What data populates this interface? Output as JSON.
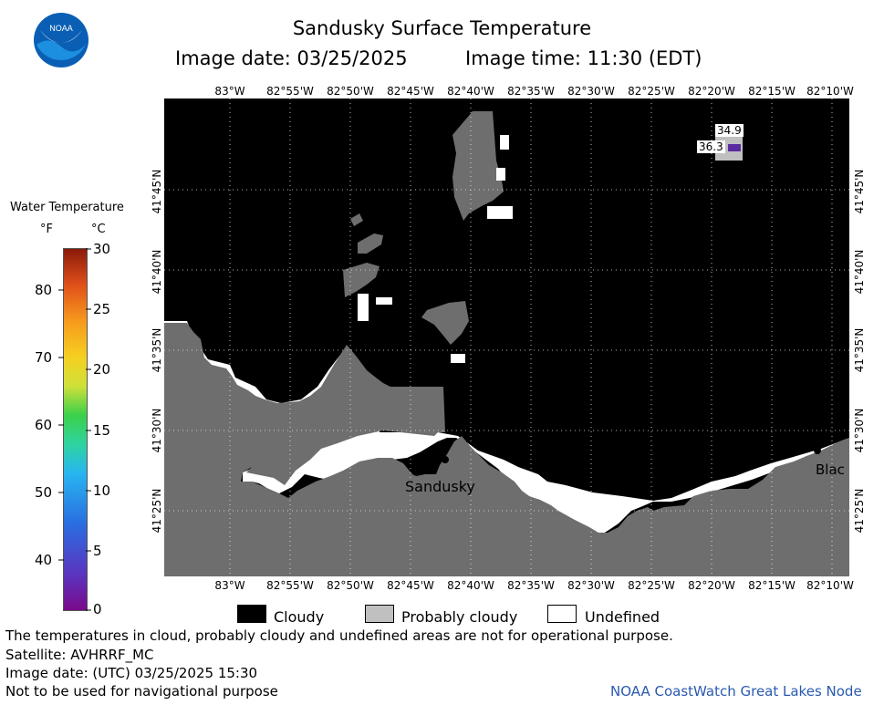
{
  "header": {
    "title": "Sandusky Surface Temperature",
    "image_date": "Image date: 03/25/2025",
    "image_time": "Image time: 11:30 (EDT)"
  },
  "logo": {
    "text": "NOAA"
  },
  "map": {
    "lon_labels": [
      "83°W",
      "82°55'W",
      "82°50'W",
      "82°45'W",
      "82°40'W",
      "82°35'W",
      "82°30'W",
      "82°25'W",
      "82°20'W",
      "82°15'W",
      "82°10'W"
    ],
    "lat_labels": [
      "41°45'N",
      "41°40'N",
      "41°35'N",
      "41°30'N",
      "41°25'N"
    ],
    "places": [
      {
        "name": "Sandusky"
      },
      {
        "name": "Blac"
      }
    ],
    "temp_labels": [
      "34.9",
      "36.3"
    ],
    "colors": {
      "cloudy": "#000000",
      "probably_cloudy": "#c0c0c0",
      "land": "#6e6e6e",
      "undefined": "#ffffff",
      "water_purple": "#5a2ca0"
    }
  },
  "color_scale": {
    "title": "Water Temperature",
    "unit_f": "°F",
    "unit_c": "°C",
    "f_ticks": [
      "80",
      "70",
      "60",
      "50",
      "40"
    ],
    "c_ticks": [
      "30",
      "25",
      "20",
      "15",
      "10",
      "5",
      "0"
    ]
  },
  "legend": {
    "cloudy": "Cloudy",
    "probably_cloudy": "Probably cloudy",
    "undefined": "Undefined"
  },
  "notes": {
    "disclaimer": "The temperatures in cloud, probably cloudy and undefined areas are not for operational purpose.",
    "satellite": "Satellite: AVHRRF_MC",
    "utc_date": "Image date: (UTC) 03/25/2025  15:30",
    "nav_warning": "Not to be used for navigational purpose",
    "credit": "NOAA CoastWatch Great Lakes Node"
  }
}
